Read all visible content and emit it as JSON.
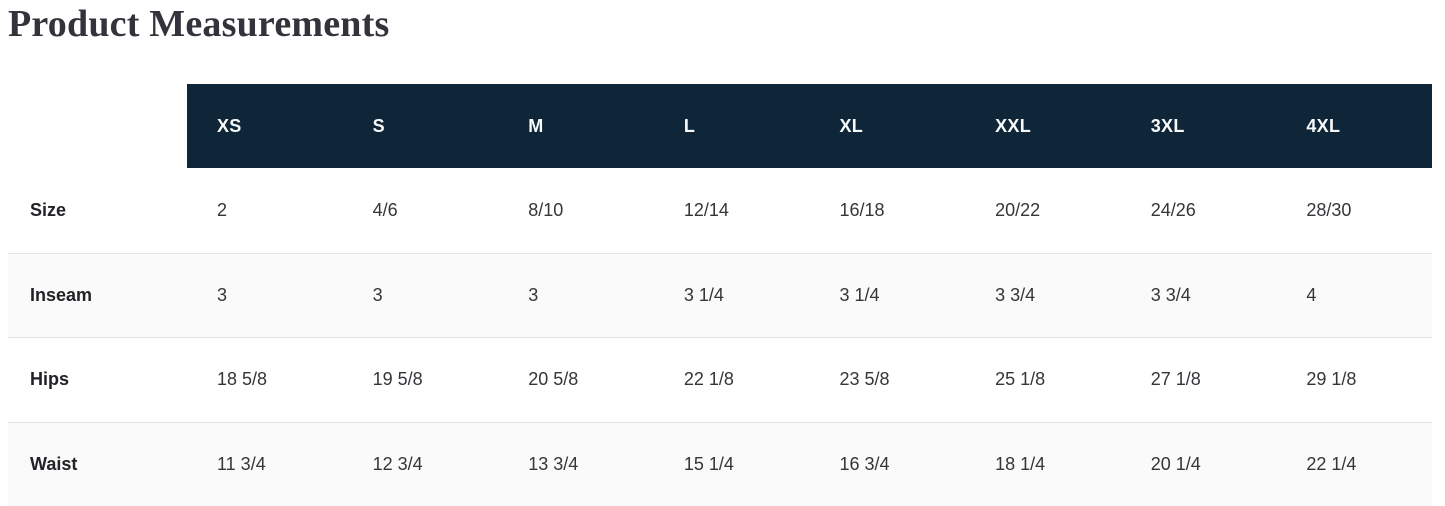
{
  "title": "Product Measurements",
  "colors": {
    "header_bg": "#0e2637",
    "header_text": "#f7f9fa",
    "row_alt_bg": "#fafafa",
    "border": "#e4e4e4",
    "title_text": "#33333b",
    "label_text": "#222227",
    "value_text": "#35353a",
    "page_bg": "#ffffff"
  },
  "table": {
    "columns": [
      "XS",
      "S",
      "M",
      "L",
      "XL",
      "XXL",
      "3XL",
      "4XL"
    ],
    "rows": [
      {
        "label": "Size",
        "values": [
          "2",
          "4/6",
          "8/10",
          "12/14",
          "16/18",
          "20/22",
          "24/26",
          "28/30"
        ]
      },
      {
        "label": "Inseam",
        "values": [
          "3",
          "3",
          "3",
          "3 1/4",
          "3 1/4",
          "3 3/4",
          "3 3/4",
          "4"
        ]
      },
      {
        "label": "Hips",
        "values": [
          "18 5/8",
          "19 5/8",
          "20 5/8",
          "22 1/8",
          "23 5/8",
          "25 1/8",
          "27 1/8",
          "29 1/8"
        ]
      },
      {
        "label": "Waist",
        "values": [
          "11 3/4",
          "12 3/4",
          "13 3/4",
          "15 1/4",
          "16 3/4",
          "18 1/4",
          "20 1/4",
          "22 1/4"
        ]
      }
    ]
  }
}
